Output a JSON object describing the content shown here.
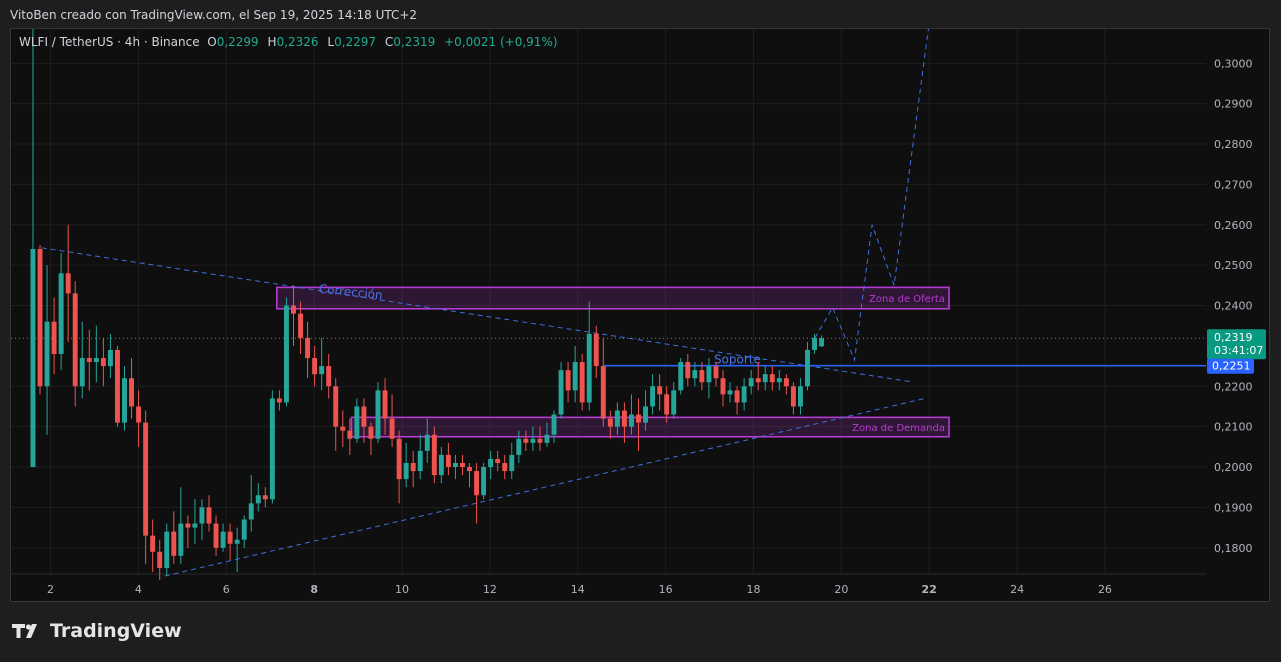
{
  "header": {
    "attribution": "VitoBen creado con TradingView.com, el Sep 19, 2025 14:18 UTC+2"
  },
  "symbol": {
    "name": "WLFI / TetherUS · 4h · Binance",
    "open_label": "O",
    "open": "0,2299",
    "high_label": "H",
    "high": "0,2326",
    "low_label": "L",
    "low": "0,2297",
    "close_label": "C",
    "close": "0,2319",
    "change": "+0,0021 (+0,91%)"
  },
  "price_tag": {
    "price": "0,2319",
    "countdown": "03:41:07",
    "line_price": "0,2251"
  },
  "brand": {
    "name": "TradingView"
  },
  "colors": {
    "bull": "#26a69a",
    "bear": "#ef5350",
    "zone": "#b73bd3",
    "trend": "#3f6fe0",
    "support": "#2962ff",
    "current_tag": "#089981"
  },
  "annotations": {
    "correction": "Corrección",
    "supply": "Zona de Oferta",
    "demand": "Zona de Demanda",
    "support": "Soporte"
  },
  "chart_data": {
    "type": "candlestick",
    "xlim": [
      1.1,
      28.3
    ],
    "ylim": [
      0.1735,
      0.3085
    ],
    "x_ticks": [
      {
        "x": 2,
        "label": "2"
      },
      {
        "x": 4,
        "label": "4"
      },
      {
        "x": 6,
        "label": "6"
      },
      {
        "x": 8,
        "label": "8"
      },
      {
        "x": 10,
        "label": "10"
      },
      {
        "x": 12,
        "label": "12"
      },
      {
        "x": 14,
        "label": "14"
      },
      {
        "x": 16,
        "label": "16"
      },
      {
        "x": 18,
        "label": "18"
      },
      {
        "x": 20,
        "label": "20"
      },
      {
        "x": 22,
        "label": "22"
      },
      {
        "x": 24,
        "label": "24"
      },
      {
        "x": 26,
        "label": "26"
      }
    ],
    "y_ticks": [
      {
        "y": 0.18,
        "label": "0,1800"
      },
      {
        "y": 0.19,
        "label": "0,1900"
      },
      {
        "y": 0.2,
        "label": "0,2000"
      },
      {
        "y": 0.21,
        "label": "0,2100"
      },
      {
        "y": 0.22,
        "label": "0,2200"
      },
      {
        "y": 0.24,
        "label": "0,2400"
      },
      {
        "y": 0.25,
        "label": "0,2500"
      },
      {
        "y": 0.26,
        "label": "0,2600"
      },
      {
        "y": 0.27,
        "label": "0,2700"
      },
      {
        "y": 0.28,
        "label": "0,2800"
      },
      {
        "y": 0.29,
        "label": "0,2900"
      },
      {
        "y": 0.3,
        "label": "0,3000"
      }
    ],
    "candles": [
      [
        0.2,
        0.254,
        0.2,
        0.31
      ],
      [
        0.254,
        0.22,
        0.218,
        0.255
      ],
      [
        0.22,
        0.236,
        0.208,
        0.25
      ],
      [
        0.236,
        0.228,
        0.223,
        0.242
      ],
      [
        0.228,
        0.248,
        0.224,
        0.253
      ],
      [
        0.248,
        0.243,
        0.231,
        0.26
      ],
      [
        0.243,
        0.22,
        0.215,
        0.246
      ],
      [
        0.22,
        0.227,
        0.217,
        0.236
      ],
      [
        0.227,
        0.226,
        0.219,
        0.234
      ],
      [
        0.226,
        0.227,
        0.221,
        0.235
      ],
      [
        0.227,
        0.225,
        0.22,
        0.232
      ],
      [
        0.225,
        0.229,
        0.222,
        0.233
      ],
      [
        0.229,
        0.211,
        0.21,
        0.23
      ],
      [
        0.211,
        0.222,
        0.209,
        0.225
      ],
      [
        0.222,
        0.215,
        0.212,
        0.227
      ],
      [
        0.215,
        0.211,
        0.205,
        0.219
      ],
      [
        0.211,
        0.183,
        0.176,
        0.214
      ],
      [
        0.183,
        0.179,
        0.174,
        0.187
      ],
      [
        0.179,
        0.175,
        0.172,
        0.182
      ],
      [
        0.175,
        0.184,
        0.173,
        0.186
      ],
      [
        0.184,
        0.178,
        0.176,
        0.189
      ],
      [
        0.178,
        0.186,
        0.176,
        0.195
      ],
      [
        0.186,
        0.185,
        0.18,
        0.188
      ],
      [
        0.185,
        0.186,
        0.181,
        0.192
      ],
      [
        0.186,
        0.19,
        0.182,
        0.192
      ],
      [
        0.19,
        0.186,
        0.184,
        0.193
      ],
      [
        0.186,
        0.18,
        0.178,
        0.188
      ],
      [
        0.18,
        0.184,
        0.179,
        0.186
      ],
      [
        0.184,
        0.181,
        0.177,
        0.186
      ],
      [
        0.181,
        0.182,
        0.174,
        0.185
      ],
      [
        0.182,
        0.187,
        0.18,
        0.188
      ],
      [
        0.187,
        0.191,
        0.184,
        0.198
      ],
      [
        0.191,
        0.193,
        0.189,
        0.196
      ],
      [
        0.193,
        0.192,
        0.19,
        0.195
      ],
      [
        0.192,
        0.217,
        0.191,
        0.219
      ],
      [
        0.217,
        0.216,
        0.214,
        0.219
      ],
      [
        0.216,
        0.24,
        0.215,
        0.242
      ],
      [
        0.24,
        0.238,
        0.23,
        0.245
      ],
      [
        0.238,
        0.232,
        0.228,
        0.241
      ],
      [
        0.232,
        0.227,
        0.222,
        0.236
      ],
      [
        0.227,
        0.223,
        0.22,
        0.23
      ],
      [
        0.223,
        0.225,
        0.219,
        0.232
      ],
      [
        0.225,
        0.22,
        0.217,
        0.228
      ],
      [
        0.22,
        0.21,
        0.204,
        0.222
      ],
      [
        0.21,
        0.209,
        0.205,
        0.214
      ],
      [
        0.209,
        0.207,
        0.203,
        0.212
      ],
      [
        0.207,
        0.215,
        0.206,
        0.217
      ],
      [
        0.215,
        0.21,
        0.206,
        0.217
      ],
      [
        0.21,
        0.207,
        0.203,
        0.211
      ],
      [
        0.207,
        0.219,
        0.206,
        0.221
      ],
      [
        0.219,
        0.212,
        0.208,
        0.222
      ],
      [
        0.212,
        0.207,
        0.205,
        0.218
      ],
      [
        0.207,
        0.197,
        0.191,
        0.209
      ],
      [
        0.197,
        0.201,
        0.195,
        0.206
      ],
      [
        0.201,
        0.199,
        0.195,
        0.204
      ],
      [
        0.199,
        0.204,
        0.197,
        0.208
      ],
      [
        0.204,
        0.208,
        0.201,
        0.212
      ],
      [
        0.208,
        0.198,
        0.196,
        0.21
      ],
      [
        0.198,
        0.203,
        0.196,
        0.205
      ],
      [
        0.203,
        0.2,
        0.198,
        0.206
      ],
      [
        0.2,
        0.201,
        0.197,
        0.203
      ],
      [
        0.201,
        0.2,
        0.198,
        0.203
      ],
      [
        0.2,
        0.199,
        0.195,
        0.201
      ],
      [
        0.199,
        0.193,
        0.186,
        0.201
      ],
      [
        0.193,
        0.2,
        0.192,
        0.201
      ],
      [
        0.2,
        0.202,
        0.197,
        0.204
      ],
      [
        0.202,
        0.201,
        0.199,
        0.204
      ],
      [
        0.201,
        0.199,
        0.197,
        0.203
      ],
      [
        0.199,
        0.203,
        0.197,
        0.206
      ],
      [
        0.203,
        0.207,
        0.201,
        0.209
      ],
      [
        0.207,
        0.206,
        0.204,
        0.209
      ],
      [
        0.206,
        0.207,
        0.204,
        0.21
      ],
      [
        0.207,
        0.206,
        0.204,
        0.21
      ],
      [
        0.206,
        0.208,
        0.205,
        0.211
      ],
      [
        0.208,
        0.213,
        0.206,
        0.214
      ],
      [
        0.213,
        0.224,
        0.212,
        0.226
      ],
      [
        0.224,
        0.219,
        0.216,
        0.226
      ],
      [
        0.219,
        0.226,
        0.216,
        0.23
      ],
      [
        0.226,
        0.216,
        0.214,
        0.228
      ],
      [
        0.216,
        0.233,
        0.214,
        0.241
      ],
      [
        0.233,
        0.225,
        0.222,
        0.235
      ],
      [
        0.225,
        0.212,
        0.21,
        0.232
      ],
      [
        0.212,
        0.21,
        0.207,
        0.214
      ],
      [
        0.21,
        0.214,
        0.208,
        0.216
      ],
      [
        0.214,
        0.21,
        0.206,
        0.216
      ],
      [
        0.21,
        0.213,
        0.208,
        0.218
      ],
      [
        0.213,
        0.211,
        0.204,
        0.217
      ],
      [
        0.211,
        0.215,
        0.209,
        0.219
      ],
      [
        0.215,
        0.22,
        0.213,
        0.223
      ],
      [
        0.22,
        0.218,
        0.214,
        0.223
      ],
      [
        0.218,
        0.213,
        0.211,
        0.22
      ],
      [
        0.213,
        0.219,
        0.212,
        0.221
      ],
      [
        0.219,
        0.226,
        0.218,
        0.227
      ],
      [
        0.226,
        0.222,
        0.22,
        0.228
      ],
      [
        0.222,
        0.224,
        0.22,
        0.226
      ],
      [
        0.224,
        0.221,
        0.219,
        0.226
      ],
      [
        0.221,
        0.225,
        0.217,
        0.227
      ],
      [
        0.225,
        0.222,
        0.22,
        0.226
      ],
      [
        0.222,
        0.218,
        0.215,
        0.224
      ],
      [
        0.218,
        0.219,
        0.216,
        0.221
      ],
      [
        0.219,
        0.216,
        0.213,
        0.22
      ],
      [
        0.216,
        0.22,
        0.214,
        0.222
      ],
      [
        0.22,
        0.222,
        0.218,
        0.224
      ],
      [
        0.222,
        0.221,
        0.219,
        0.226
      ],
      [
        0.221,
        0.223,
        0.219,
        0.225
      ],
      [
        0.223,
        0.221,
        0.219,
        0.225
      ],
      [
        0.221,
        0.222,
        0.219,
        0.224
      ],
      [
        0.222,
        0.22,
        0.218,
        0.223
      ],
      [
        0.22,
        0.215,
        0.213,
        0.221
      ],
      [
        0.215,
        0.22,
        0.213,
        0.222
      ],
      [
        0.22,
        0.229,
        0.219,
        0.231
      ],
      [
        0.229,
        0.232,
        0.228,
        0.233
      ],
      [
        0.2299,
        0.2319,
        0.2297,
        0.2326
      ]
    ],
    "zones": [
      {
        "name": "Zona de Oferta",
        "x0": 7.15,
        "x1": 22.45,
        "y0": 0.2392,
        "y1": 0.2445
      },
      {
        "name": "Zona de Demanda",
        "x0": 8.85,
        "x1": 22.45,
        "y0": 0.2075,
        "y1": 0.2123
      }
    ],
    "lines": [
      {
        "kind": "resistance",
        "x0": 1.8,
        "y0": 0.2543,
        "x1": 21.6,
        "y1": 0.2211
      },
      {
        "kind": "support-trend",
        "x0": 4.6,
        "y0": 0.173,
        "x1": 21.9,
        "y1": 0.217
      },
      {
        "kind": "support",
        "x0": 14.6,
        "y0": 0.2251,
        "x1": 28.3,
        "y1": 0.2251
      }
    ],
    "projection": [
      [
        19.4,
        0.232
      ],
      [
        19.8,
        0.2395
      ],
      [
        20.3,
        0.2265
      ],
      [
        20.7,
        0.26
      ],
      [
        21.2,
        0.245
      ],
      [
        22.0,
        0.31
      ]
    ],
    "current_price": 0.2319
  }
}
